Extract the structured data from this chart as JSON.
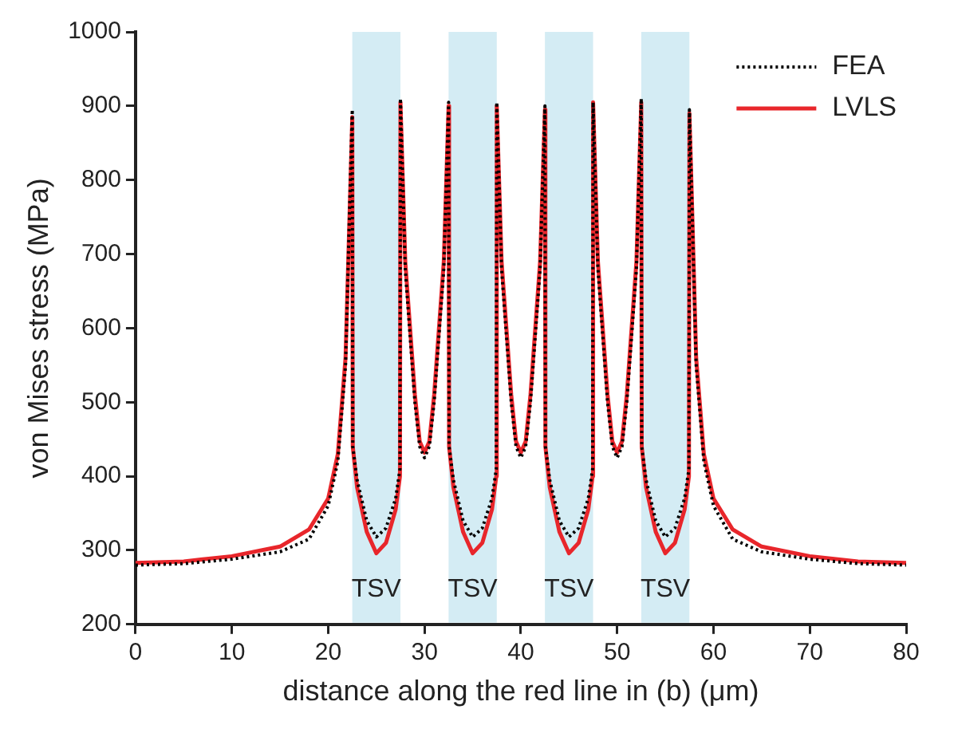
{
  "chart_data": {
    "type": "line",
    "xlabel": "distance along the red line in (b) (μm)",
    "ylabel": "von Mises stress (MPa)",
    "xlim": [
      0,
      80
    ],
    "xticks": [
      0,
      10,
      20,
      30,
      40,
      50,
      60,
      70,
      80
    ],
    "ylim": [
      200,
      1000
    ],
    "yticks": [
      200,
      300,
      400,
      500,
      600,
      700,
      800,
      900,
      1000
    ],
    "grid": false,
    "legend": "top right",
    "marker": "none",
    "bands": [
      {
        "axis": "x",
        "from": 22.5,
        "to": 27.5,
        "label": "TSV",
        "color": "#d4ecf4"
      },
      {
        "axis": "x",
        "from": 32.5,
        "to": 37.5,
        "label": "TSV",
        "color": "#d4ecf4"
      },
      {
        "axis": "x",
        "from": 42.5,
        "to": 47.5,
        "label": "TSV",
        "color": "#d4ecf4"
      },
      {
        "axis": "x",
        "from": 52.5,
        "to": 57.5,
        "label": "TSV",
        "color": "#d4ecf4"
      }
    ],
    "series": [
      {
        "name": "FEA",
        "color": "#000000",
        "line_style": "dotted",
        "x": [
          0,
          5,
          10,
          15,
          18,
          20,
          21,
          21.8,
          22.3,
          22.5,
          22.55,
          23,
          24,
          25,
          26,
          27,
          27.45,
          27.5,
          28,
          29,
          29.5,
          30,
          30.5,
          31,
          32,
          32.5,
          32.55,
          33,
          34,
          35,
          36,
          37,
          37.45,
          37.5,
          38,
          39,
          39.5,
          40,
          40.5,
          41,
          42,
          42.5,
          42.55,
          43,
          44,
          45,
          46,
          47,
          47.45,
          47.5,
          48,
          49,
          49.5,
          50,
          50.5,
          51,
          52,
          52.5,
          52.55,
          53,
          54,
          55,
          56,
          57,
          57.45,
          57.5,
          57.7,
          58.2,
          59,
          60,
          62,
          65,
          70,
          75,
          80
        ],
        "values": [
          280,
          282,
          288,
          298,
          315,
          360,
          420,
          550,
          800,
          895,
          440,
          395,
          340,
          318,
          330,
          370,
          410,
          910,
          680,
          500,
          440,
          425,
          440,
          500,
          680,
          905,
          440,
          395,
          340,
          318,
          330,
          370,
          410,
          905,
          680,
          500,
          440,
          425,
          440,
          500,
          680,
          900,
          440,
          395,
          340,
          318,
          330,
          370,
          410,
          905,
          680,
          500,
          440,
          425,
          440,
          500,
          680,
          910,
          440,
          395,
          340,
          318,
          330,
          370,
          410,
          895,
          800,
          550,
          420,
          360,
          315,
          298,
          288,
          282,
          280
        ]
      },
      {
        "name": "LVLS",
        "color": "#e8262b",
        "line_style": "solid",
        "x": [
          0,
          5,
          10,
          15,
          18,
          20,
          21,
          21.8,
          22.3,
          22.5,
          22.55,
          23,
          24,
          25,
          26,
          27,
          27.45,
          27.5,
          28,
          29,
          29.5,
          30,
          30.5,
          31,
          32,
          32.5,
          32.55,
          33,
          34,
          35,
          36,
          37,
          37.45,
          37.5,
          38,
          39,
          39.5,
          40,
          40.5,
          41,
          42,
          42.5,
          42.55,
          43,
          44,
          45,
          46,
          47,
          47.45,
          47.5,
          48,
          49,
          49.5,
          50,
          50.5,
          51,
          52,
          52.5,
          52.55,
          53,
          54,
          55,
          56,
          57,
          57.45,
          57.5,
          57.7,
          58.2,
          59,
          60,
          62,
          65,
          70,
          75,
          80
        ],
        "values": [
          283,
          285,
          292,
          305,
          328,
          370,
          430,
          560,
          790,
          885,
          440,
          385,
          325,
          296,
          310,
          355,
          400,
          905,
          690,
          510,
          447,
          432,
          447,
          510,
          690,
          900,
          440,
          385,
          325,
          296,
          310,
          355,
          400,
          900,
          690,
          510,
          447,
          432,
          447,
          510,
          690,
          895,
          440,
          385,
          325,
          296,
          310,
          355,
          400,
          905,
          690,
          510,
          447,
          432,
          447,
          510,
          690,
          905,
          440,
          385,
          325,
          296,
          310,
          355,
          400,
          890,
          800,
          560,
          430,
          370,
          328,
          305,
          292,
          285,
          283
        ]
      }
    ]
  }
}
